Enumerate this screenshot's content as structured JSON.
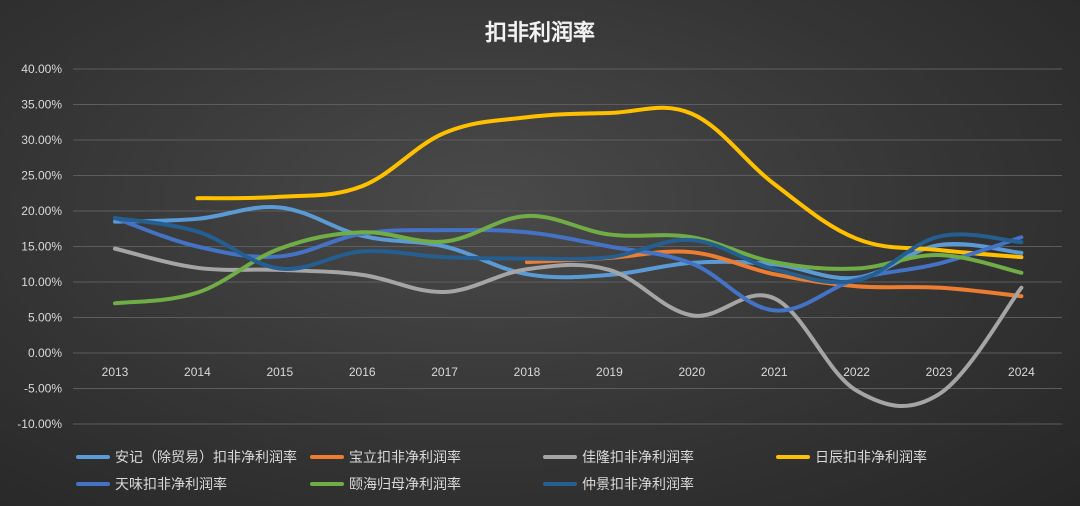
{
  "chart_data": {
    "type": "line",
    "title": "扣非利润率",
    "xlabel": "",
    "ylabel": "",
    "ylim": [
      -0.1,
      0.4
    ],
    "y_ticks": [
      "40.00%",
      "35.00%",
      "30.00%",
      "25.00%",
      "20.00%",
      "15.00%",
      "10.00%",
      "5.00%",
      "0.00%",
      "-5.00%",
      "-10.00%"
    ],
    "categories": [
      "2013",
      "2014",
      "2015",
      "2016",
      "2017",
      "2018",
      "2019",
      "2020",
      "2021",
      "2022",
      "2023",
      "2024"
    ],
    "grid": true,
    "legend_position": "bottom",
    "series": [
      {
        "name": "安记（除贸易）扣非净利润率",
        "color": "#5b9bd5",
        "values": [
          0.185,
          0.189,
          0.205,
          0.165,
          0.15,
          0.111,
          0.11,
          0.127,
          0.125,
          0.106,
          0.152,
          0.141
        ]
      },
      {
        "name": "宝立扣非净利润率",
        "color": "#ed7d31",
        "values": [
          null,
          null,
          null,
          null,
          null,
          0.128,
          0.134,
          0.142,
          0.111,
          0.094,
          0.092,
          0.08
        ]
      },
      {
        "name": "佳隆扣非净利润率",
        "color": "#a5a5a5",
        "values": [
          0.147,
          0.12,
          0.117,
          0.11,
          0.086,
          0.118,
          0.117,
          0.053,
          0.077,
          -0.053,
          -0.058,
          0.092
        ]
      },
      {
        "name": "日辰扣非净利润率",
        "color": "#ffc000",
        "values": [
          null,
          0.218,
          0.22,
          0.235,
          0.31,
          0.332,
          0.338,
          0.337,
          0.238,
          0.161,
          0.145,
          0.135
        ]
      },
      {
        "name": "天味扣非净利润率",
        "color": "#4472c4",
        "values": [
          0.19,
          0.15,
          0.136,
          0.168,
          0.173,
          0.17,
          0.15,
          0.126,
          0.06,
          0.104,
          0.126,
          0.163
        ]
      },
      {
        "name": "颐海归母净利润率",
        "color": "#70ad47",
        "values": [
          0.07,
          0.085,
          0.147,
          0.17,
          0.157,
          0.193,
          0.167,
          0.163,
          0.128,
          0.119,
          0.138,
          0.113
        ]
      },
      {
        "name": "仲景扣非净利润率",
        "color": "#255e91",
        "values": [
          0.19,
          0.171,
          0.119,
          0.143,
          0.135,
          0.133,
          0.135,
          0.159,
          0.118,
          0.102,
          0.164,
          0.156
        ]
      }
    ]
  }
}
